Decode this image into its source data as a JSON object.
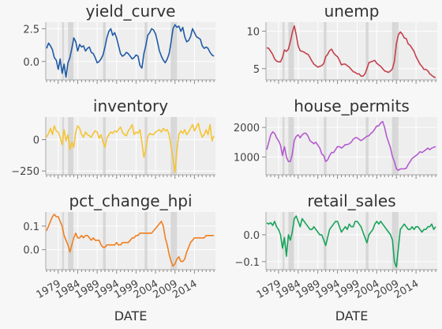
{
  "chart_data": [
    {
      "type": "line",
      "title": "yield_curve",
      "color": "#1f5aa6",
      "ylim": [
        -1.4,
        3.0
      ],
      "yticks": [
        0.0,
        2.5
      ],
      "ytick_labels": [
        "0.0",
        "2.5"
      ],
      "x": [
        1976,
        1976.5,
        1977,
        1977.5,
        1978,
        1978.5,
        1979,
        1979.5,
        1980,
        1980.5,
        1981,
        1981.5,
        1982,
        1982.5,
        1983,
        1983.5,
        1984,
        1984.5,
        1985,
        1985.5,
        1986,
        1986.5,
        1987,
        1987.5,
        1988,
        1988.5,
        1989,
        1989.5,
        1990,
        1990.5,
        1991,
        1991.5,
        1992,
        1992.5,
        1993,
        1993.5,
        1994,
        1994.5,
        1995,
        1995.5,
        1996,
        1996.5,
        1997,
        1997.5,
        1998,
        1998.5,
        1999,
        1999.5,
        2000,
        2000.5,
        2001,
        2001.5,
        2002,
        2002.5,
        2003,
        2003.5,
        2004,
        2004.5,
        2005,
        2005.5,
        2006,
        2006.5,
        2007,
        2007.5,
        2008,
        2008.5,
        2009,
        2009.5,
        2010,
        2010.5,
        2011,
        2011.5,
        2012,
        2012.5,
        2013,
        2013.5,
        2014,
        2014.5,
        2015,
        2015.5,
        2016,
        2016.5,
        2017,
        2017.5,
        2018,
        2018.5,
        2019
      ],
      "values": [
        1.0,
        1.4,
        1.2,
        0.9,
        0.3,
        0.1,
        -0.6,
        0.2,
        -0.9,
        -0.2,
        -1.2,
        -0.1,
        0.3,
        1.0,
        1.8,
        1.5,
        0.8,
        1.3,
        1.1,
        1.2,
        0.8,
        1.0,
        1.1,
        0.7,
        0.6,
        0.3,
        -0.1,
        0.0,
        0.2,
        0.5,
        1.1,
        1.8,
        2.3,
        2.5,
        2.0,
        2.2,
        1.8,
        1.2,
        0.6,
        0.4,
        0.5,
        0.7,
        0.6,
        0.4,
        0.2,
        0.3,
        0.5,
        0.4,
        -0.3,
        -0.5,
        0.6,
        1.2,
        2.0,
        2.2,
        2.5,
        2.4,
        2.1,
        1.5,
        0.8,
        0.4,
        0.1,
        -0.1,
        0.2,
        0.6,
        1.5,
        2.5,
        2.8,
        2.6,
        2.7,
        2.3,
        2.6,
        1.9,
        1.5,
        1.6,
        1.9,
        2.5,
        2.2,
        1.9,
        1.8,
        1.7,
        1.2,
        1.0,
        1.1,
        1.0,
        0.7,
        0.5,
        0.4
      ]
    },
    {
      "type": "line",
      "title": "unemp",
      "color": "#c4404b",
      "ylim": [
        3.5,
        11.2
      ],
      "yticks": [
        5,
        10
      ],
      "ytick_labels": [
        "5",
        "10"
      ],
      "x": [
        1976,
        1976.5,
        1977,
        1977.5,
        1978,
        1978.5,
        1979,
        1979.5,
        1980,
        1980.5,
        1981,
        1981.5,
        1982,
        1982.5,
        1983,
        1983.5,
        1984,
        1984.5,
        1985,
        1985.5,
        1986,
        1986.5,
        1987,
        1987.5,
        1988,
        1988.5,
        1989,
        1989.5,
        1990,
        1990.5,
        1991,
        1991.5,
        1992,
        1992.5,
        1993,
        1993.5,
        1994,
        1994.5,
        1995,
        1995.5,
        1996,
        1996.5,
        1997,
        1997.5,
        1998,
        1998.5,
        1999,
        1999.5,
        2000,
        2000.5,
        2001,
        2001.5,
        2002,
        2002.5,
        2003,
        2003.5,
        2004,
        2004.5,
        2005,
        2005.5,
        2006,
        2006.5,
        2007,
        2007.5,
        2008,
        2008.5,
        2009,
        2009.5,
        2010,
        2010.5,
        2011,
        2011.5,
        2012,
        2012.5,
        2013,
        2013.5,
        2014,
        2014.5,
        2015,
        2015.5,
        2016,
        2016.5,
        2017,
        2017.5,
        2018,
        2018.5,
        2019
      ],
      "values": [
        7.8,
        7.7,
        7.3,
        6.9,
        6.3,
        6.0,
        5.9,
        5.9,
        6.5,
        7.5,
        7.3,
        7.6,
        8.6,
        9.8,
        10.7,
        9.5,
        8.0,
        7.4,
        7.3,
        7.2,
        7.0,
        6.9,
        6.5,
        6.0,
        5.6,
        5.4,
        5.2,
        5.3,
        5.4,
        5.7,
        6.6,
        6.9,
        7.4,
        7.6,
        7.1,
        6.8,
        6.6,
        6.1,
        5.5,
        5.6,
        5.6,
        5.4,
        5.2,
        4.9,
        4.6,
        4.5,
        4.3,
        4.3,
        4.0,
        4.0,
        4.3,
        5.0,
        5.8,
        5.9,
        6.0,
        6.1,
        5.7,
        5.5,
        5.3,
        5.0,
        4.7,
        4.6,
        4.5,
        4.7,
        5.0,
        6.0,
        8.3,
        9.5,
        9.9,
        9.6,
        9.1,
        9.0,
        8.3,
        8.1,
        7.7,
        7.3,
        6.6,
        6.1,
        5.6,
        5.3,
        4.9,
        4.9,
        4.7,
        4.3,
        4.1,
        3.9,
        3.8
      ]
    },
    {
      "type": "line",
      "title": "inventory",
      "color": "#f5c434",
      "ylim": [
        -280,
        180
      ],
      "yticks": [
        -250,
        0
      ],
      "ytick_labels": [
        "−250",
        "0"
      ],
      "x": [
        1976,
        1976.5,
        1977,
        1977.5,
        1978,
        1978.5,
        1979,
        1979.5,
        1980,
        1980.5,
        1981,
        1981.5,
        1982,
        1982.5,
        1983,
        1983.5,
        1984,
        1984.5,
        1985,
        1985.5,
        1986,
        1986.5,
        1987,
        1987.5,
        1988,
        1988.5,
        1989,
        1989.5,
        1990,
        1990.5,
        1991,
        1991.5,
        1992,
        1992.5,
        1993,
        1993.5,
        1994,
        1994.5,
        1995,
        1995.5,
        1996,
        1996.5,
        1997,
        1997.5,
        1998,
        1998.5,
        1999,
        1999.5,
        2000,
        2000.5,
        2001,
        2001.5,
        2002,
        2002.5,
        2003,
        2003.5,
        2004,
        2004.5,
        2005,
        2005.5,
        2006,
        2006.5,
        2007,
        2007.5,
        2008,
        2008.5,
        2009,
        2009.5,
        2010,
        2010.5,
        2011,
        2011.5,
        2012,
        2012.5,
        2013,
        2013.5,
        2014,
        2014.5,
        2015,
        2015.5,
        2016,
        2016.5,
        2017,
        2017.5,
        2018,
        2018.5,
        2019
      ],
      "values": [
        20,
        50,
        90,
        40,
        110,
        70,
        60,
        20,
        -40,
        80,
        -10,
        40,
        -80,
        -20,
        -60,
        60,
        110,
        90,
        40,
        20,
        60,
        40,
        30,
        20,
        50,
        70,
        60,
        10,
        40,
        -20,
        -60,
        10,
        40,
        60,
        50,
        70,
        60,
        80,
        100,
        60,
        40,
        30,
        70,
        90,
        120,
        40,
        60,
        50,
        80,
        -20,
        -140,
        -80,
        20,
        50,
        40,
        40,
        60,
        70,
        80,
        60,
        90,
        70,
        80,
        40,
        -60,
        -150,
        -260,
        -80,
        40,
        70,
        50,
        80,
        40,
        60,
        90,
        120,
        70,
        100,
        130,
        60,
        20,
        40,
        80,
        40,
        120,
        -10,
        30
      ]
    },
    {
      "type": "line",
      "title": "house_permits",
      "color": "#b55ad0",
      "ylim": [
        400,
        2350
      ],
      "yticks": [
        1000,
        2000
      ],
      "ytick_labels": [
        "1000",
        "2000"
      ],
      "x": [
        1976,
        1976.5,
        1977,
        1977.5,
        1978,
        1978.5,
        1979,
        1979.5,
        1980,
        1980.5,
        1981,
        1981.5,
        1982,
        1982.5,
        1983,
        1983.5,
        1984,
        1984.5,
        1985,
        1985.5,
        1986,
        1986.5,
        1987,
        1987.5,
        1988,
        1988.5,
        1989,
        1989.5,
        1990,
        1990.5,
        1991,
        1991.5,
        1992,
        1992.5,
        1993,
        1993.5,
        1994,
        1994.5,
        1995,
        1995.5,
        1996,
        1996.5,
        1997,
        1997.5,
        1998,
        1998.5,
        1999,
        1999.5,
        2000,
        2000.5,
        2001,
        2001.5,
        2002,
        2002.5,
        2003,
        2003.5,
        2004,
        2004.5,
        2005,
        2005.5,
        2006,
        2006.5,
        2007,
        2007.5,
        2008,
        2008.5,
        2009,
        2009.5,
        2010,
        2010.5,
        2011,
        2011.5,
        2012,
        2012.5,
        2013,
        2013.5,
        2014,
        2014.5,
        2015,
        2015.5,
        2016,
        2016.5,
        2017,
        2017.5,
        2018,
        2018.5,
        2019
      ],
      "values": [
        1250,
        1500,
        1750,
        1850,
        1800,
        1650,
        1550,
        1400,
        1050,
        1350,
        1000,
        850,
        850,
        1100,
        1550,
        1700,
        1750,
        1650,
        1750,
        1800,
        1800,
        1700,
        1550,
        1500,
        1450,
        1500,
        1400,
        1300,
        1100,
        1050,
        850,
        900,
        1050,
        1150,
        1150,
        1250,
        1350,
        1350,
        1300,
        1350,
        1420,
        1420,
        1450,
        1500,
        1600,
        1650,
        1650,
        1600,
        1550,
        1600,
        1650,
        1700,
        1720,
        1800,
        1850,
        1950,
        2050,
        2050,
        2150,
        2200,
        2000,
        1700,
        1500,
        1300,
        1000,
        850,
        600,
        550,
        600,
        600,
        600,
        620,
        750,
        850,
        950,
        1000,
        1050,
        1100,
        1180,
        1150,
        1200,
        1250,
        1300,
        1250,
        1300,
        1330,
        1350
      ]
    },
    {
      "type": "line",
      "title": "pct_change_hpi",
      "color": "#f07f1f",
      "ylim": [
        -0.085,
        0.16
      ],
      "yticks": [
        0.0,
        0.1
      ],
      "ytick_labels": [
        "0.0",
        "0.1"
      ],
      "x": [
        1976,
        1976.5,
        1977,
        1977.5,
        1978,
        1978.5,
        1979,
        1979.5,
        1980,
        1980.5,
        1981,
        1981.5,
        1982,
        1982.5,
        1983,
        1983.5,
        1984,
        1984.5,
        1985,
        1985.5,
        1986,
        1986.5,
        1987,
        1987.5,
        1988,
        1988.5,
        1989,
        1989.5,
        1990,
        1990.5,
        1991,
        1991.5,
        1992,
        1992.5,
        1993,
        1993.5,
        1994,
        1994.5,
        1995,
        1995.5,
        1996,
        1996.5,
        1997,
        1997.5,
        1998,
        1998.5,
        1999,
        1999.5,
        2000,
        2000.5,
        2001,
        2001.5,
        2002,
        2002.5,
        2003,
        2003.5,
        2004,
        2004.5,
        2005,
        2005.5,
        2006,
        2006.5,
        2007,
        2007.5,
        2008,
        2008.5,
        2009,
        2009.5,
        2010,
        2010.5,
        2011,
        2011.5,
        2012,
        2012.5,
        2013,
        2013.5,
        2014,
        2014.5,
        2015,
        2015.5,
        2016,
        2016.5,
        2017,
        2017.5,
        2018,
        2018.5,
        2019
      ],
      "values": [
        0.08,
        0.1,
        0.12,
        0.14,
        0.15,
        0.14,
        0.14,
        0.12,
        0.1,
        0.06,
        0.04,
        0.02,
        -0.01,
        0.02,
        0.05,
        0.07,
        0.05,
        0.05,
        0.06,
        0.05,
        0.06,
        0.06,
        0.05,
        0.04,
        0.05,
        0.04,
        0.04,
        0.04,
        0.02,
        0.01,
        0.01,
        0.02,
        0.02,
        0.02,
        0.02,
        0.02,
        0.03,
        0.02,
        0.02,
        0.03,
        0.03,
        0.03,
        0.03,
        0.04,
        0.05,
        0.05,
        0.06,
        0.06,
        0.07,
        0.07,
        0.07,
        0.07,
        0.07,
        0.07,
        0.07,
        0.08,
        0.09,
        0.1,
        0.11,
        0.12,
        0.1,
        0.05,
        0.02,
        -0.02,
        -0.05,
        -0.07,
        -0.06,
        -0.04,
        -0.03,
        -0.05,
        -0.05,
        -0.04,
        -0.01,
        0.01,
        0.03,
        0.04,
        0.05,
        0.05,
        0.05,
        0.05,
        0.05,
        0.05,
        0.06,
        0.06,
        0.06,
        0.06,
        0.06
      ]
    },
    {
      "type": "line",
      "title": "retail_sales",
      "color": "#17a35a",
      "ylim": [
        -0.13,
        0.085
      ],
      "yticks": [
        -0.1,
        0.0
      ],
      "ytick_labels": [
        "−0.1",
        "0.0"
      ],
      "x": [
        1976,
        1976.5,
        1977,
        1977.5,
        1978,
        1978.5,
        1979,
        1979.5,
        1980,
        1980.5,
        1981,
        1981.5,
        1982,
        1982.5,
        1983,
        1983.5,
        1984,
        1984.5,
        1985,
        1985.5,
        1986,
        1986.5,
        1987,
        1987.5,
        1988,
        1988.5,
        1989,
        1989.5,
        1990,
        1990.5,
        1991,
        1991.5,
        1992,
        1992.5,
        1993,
        1993.5,
        1994,
        1994.5,
        1995,
        1995.5,
        1996,
        1996.5,
        1997,
        1997.5,
        1998,
        1998.5,
        1999,
        1999.5,
        2000,
        2000.5,
        2001,
        2001.5,
        2002,
        2002.5,
        2003,
        2003.5,
        2004,
        2004.5,
        2005,
        2005.5,
        2006,
        2006.5,
        2007,
        2007.5,
        2008,
        2008.5,
        2009,
        2009.5,
        2010,
        2010.5,
        2011,
        2011.5,
        2012,
        2012.5,
        2013,
        2013.5,
        2014,
        2014.5,
        2015,
        2015.5,
        2016,
        2016.5,
        2017,
        2017.5,
        2018,
        2018.5,
        2019
      ],
      "values": [
        0.045,
        0.04,
        0.045,
        0.035,
        0.05,
        0.03,
        0.02,
        0.0,
        -0.05,
        -0.01,
        -0.08,
        0.0,
        -0.02,
        0.01,
        0.06,
        0.07,
        0.05,
        0.03,
        0.06,
        0.05,
        0.04,
        0.03,
        0.02,
        0.02,
        0.03,
        0.02,
        0.01,
        0.0,
        0.0,
        -0.02,
        -0.04,
        -0.01,
        0.02,
        0.03,
        0.04,
        0.05,
        0.05,
        0.03,
        0.01,
        0.02,
        0.03,
        0.02,
        0.04,
        0.03,
        0.03,
        0.05,
        0.05,
        0.04,
        0.03,
        0.01,
        -0.01,
        -0.03,
        0.0,
        0.01,
        0.02,
        0.04,
        0.05,
        0.04,
        0.05,
        0.04,
        0.03,
        0.02,
        0.01,
        0.0,
        -0.02,
        -0.1,
        -0.12,
        -0.05,
        0.02,
        0.03,
        0.04,
        0.03,
        0.02,
        0.02,
        0.03,
        0.02,
        0.03,
        0.03,
        0.02,
        0.01,
        0.02,
        0.02,
        0.03,
        0.03,
        0.04,
        0.02,
        0.03
      ]
    }
  ],
  "recessions": [
    [
      1980.0,
      1980.5
    ],
    [
      1981.5,
      1982.9
    ],
    [
      1990.5,
      1991.2
    ],
    [
      2001.2,
      2001.9
    ],
    [
      2007.9,
      2009.5
    ]
  ],
  "xlim": [
    1975.8,
    2019.4
  ],
  "xticks": [
    1979,
    1984,
    1989,
    1994,
    1999,
    2004,
    2009,
    2014
  ],
  "xtick_labels": [
    "1979",
    "1984",
    "1989",
    "1994",
    "1999",
    "2004",
    "2009",
    "2014"
  ],
  "xlabel": "DATE"
}
